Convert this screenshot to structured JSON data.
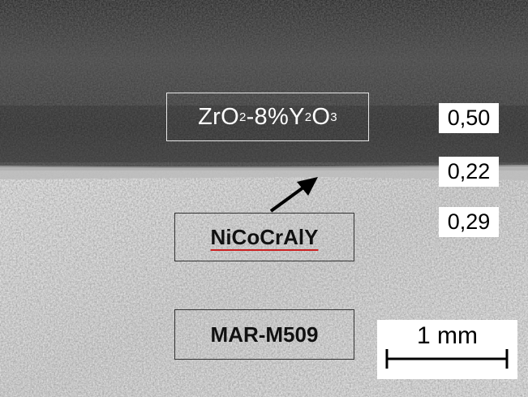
{
  "layers": {
    "top_coat": {
      "label_main": "ZrO",
      "sub1": "2",
      "label_mid": "-8%Y",
      "sub2": "2",
      "label_o": "O",
      "sub3": "3"
    },
    "bond_coat": {
      "label": "NiCoCrAlY"
    },
    "substrate": {
      "label": "MAR-M509"
    }
  },
  "thickness_labels": [
    "0,50",
    "0,22",
    "0,29"
  ],
  "scale_bar": {
    "label": "1 mm"
  },
  "colors": {
    "top_coat": "#3b3b3b",
    "substrate": "#cfcfcf",
    "arrow": "#000000",
    "label_underline": "#cc2222"
  }
}
